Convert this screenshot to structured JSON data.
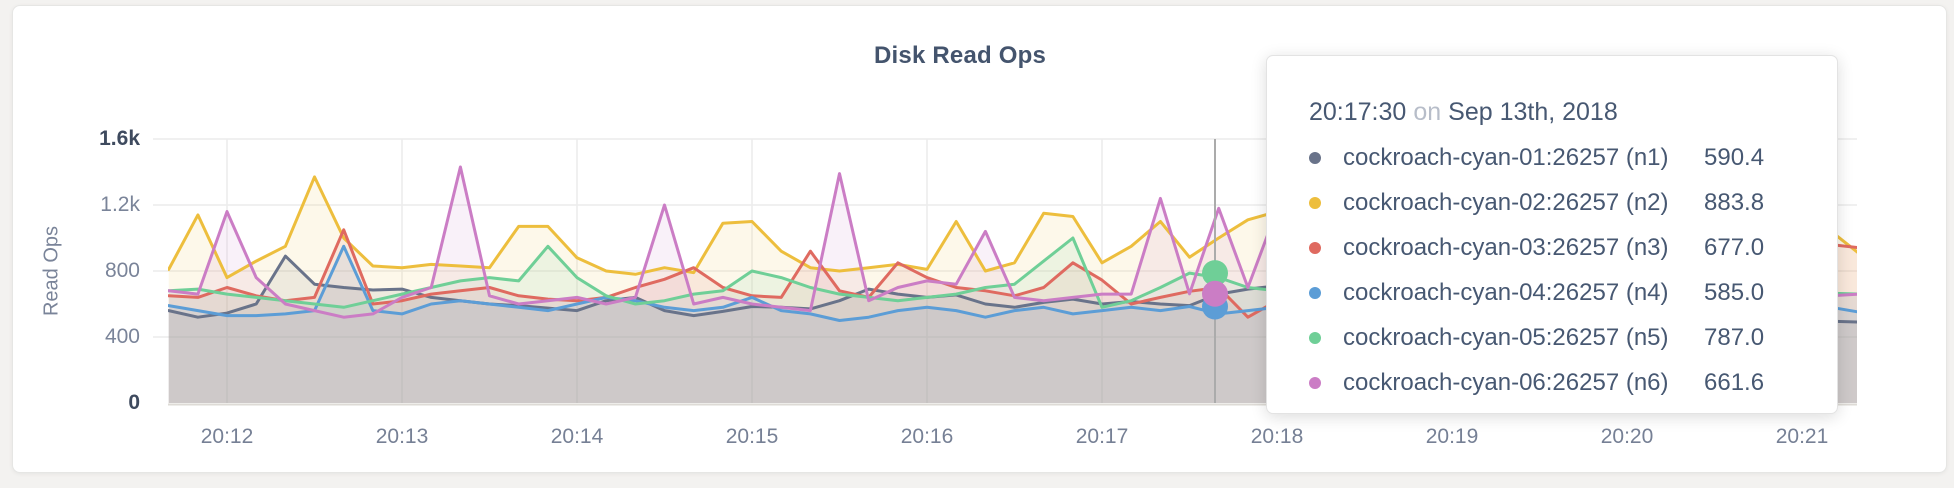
{
  "window": {
    "background": "#f3f2f0",
    "card_background": "#ffffff"
  },
  "chart": {
    "title": "Disk Read Ops",
    "y_axis_label": "Read Ops",
    "y_ticks": [
      {
        "value": 0,
        "label": "0",
        "bold": true
      },
      {
        "value": 400,
        "label": "400",
        "bold": false
      },
      {
        "value": 800,
        "label": "800",
        "bold": false
      },
      {
        "value": 1200,
        "label": "1.2k",
        "bold": false
      },
      {
        "value": 1600,
        "label": "1.6k",
        "bold": true
      }
    ],
    "x_ticks": [
      "20:12",
      "20:13",
      "20:14",
      "20:15",
      "20:16",
      "20:17",
      "20:18",
      "20:19",
      "20:20",
      "20:21"
    ],
    "grid_color": "#ececec",
    "baseline_color": "#dedbd6",
    "guideline_color": "#ababab"
  },
  "tooltip": {
    "time": "20:17:30",
    "conjunction": "on",
    "date": "Sep 13th, 2018",
    "rows": [
      {
        "label": "cockroach-cyan-01:26257 (n1)",
        "value": "590.4",
        "color": "#69738a"
      },
      {
        "label": "cockroach-cyan-02:26257 (n2)",
        "value": "883.8",
        "color": "#edbe3d"
      },
      {
        "label": "cockroach-cyan-03:26257 (n3)",
        "value": "677.0",
        "color": "#df6a60"
      },
      {
        "label": "cockroach-cyan-04:26257 (n4)",
        "value": "585.0",
        "color": "#5c9dd6"
      },
      {
        "label": "cockroach-cyan-05:26257 (n5)",
        "value": "787.0",
        "color": "#6fcf97"
      },
      {
        "label": "cockroach-cyan-06:26257 (n6)",
        "value": "661.6",
        "color": "#cb7dc5"
      }
    ]
  },
  "chart_data": {
    "type": "line",
    "title": "Disk Read Ops",
    "ylabel": "Read Ops",
    "ylim": [
      0,
      1600
    ],
    "ytick_values": [
      0,
      400,
      800,
      1200,
      1600
    ],
    "x_start_time": "20:11:40",
    "x_interval_seconds": 10,
    "x_tick_labels": [
      "20:12",
      "20:13",
      "20:14",
      "20:15",
      "20:16",
      "20:17",
      "20:18",
      "20:19",
      "20:20",
      "20:21"
    ],
    "hover_index": 35,
    "hover_time": "20:17:30",
    "hover_date": "Sep 13th, 2018",
    "hover_dot_series": [
      3,
      4,
      5
    ],
    "legend_position": "tooltip-only",
    "grid": true,
    "series": [
      {
        "name": "cockroach-cyan-01:26257 (n1)",
        "color": "#69738a",
        "values": [
          560,
          520,
          545,
          600,
          890,
          720,
          700,
          685,
          690,
          640,
          620,
          600,
          590,
          575,
          560,
          620,
          640,
          560,
          530,
          555,
          585,
          580,
          570,
          620,
          690,
          660,
          640,
          655,
          600,
          580,
          610,
          630,
          600,
          615,
          600,
          590.4,
          660,
          690,
          710,
          650,
          600,
          580,
          560,
          590,
          620,
          600,
          580,
          560,
          590,
          610,
          580,
          560,
          540,
          520,
          510,
          505,
          500,
          495,
          490
        ]
      },
      {
        "name": "cockroach-cyan-02:26257 (n2)",
        "color": "#edbe3d",
        "values": [
          810,
          1140,
          760,
          860,
          950,
          1370,
          1000,
          830,
          820,
          840,
          830,
          820,
          1070,
          1070,
          880,
          800,
          780,
          820,
          790,
          1090,
          1100,
          920,
          820,
          800,
          820,
          840,
          810,
          1100,
          800,
          850,
          1150,
          1130,
          850,
          950,
          1100,
          883.8,
          1000,
          1110,
          1160,
          880,
          800,
          850,
          900,
          820,
          780,
          880,
          950,
          850,
          800,
          900,
          1000,
          870,
          820,
          880,
          920,
          980,
          1100,
          1040,
          900
        ]
      },
      {
        "name": "cockroach-cyan-03:26257 (n3)",
        "color": "#df6a60",
        "values": [
          650,
          640,
          700,
          650,
          620,
          640,
          1050,
          600,
          620,
          660,
          680,
          700,
          650,
          630,
          620,
          640,
          700,
          750,
          820,
          700,
          650,
          640,
          920,
          680,
          640,
          850,
          760,
          700,
          680,
          650,
          700,
          850,
          745,
          600,
          640,
          677.0,
          700,
          520,
          620,
          680,
          700,
          650,
          620,
          640,
          700,
          680,
          640,
          620,
          660,
          700,
          650,
          630,
          600,
          620,
          640,
          700,
          850,
          960,
          940
        ]
      },
      {
        "name": "cockroach-cyan-04:26257 (n4)",
        "color": "#5c9dd6",
        "values": [
          590,
          560,
          530,
          530,
          540,
          560,
          950,
          560,
          540,
          600,
          620,
          600,
          580,
          560,
          600,
          640,
          620,
          580,
          560,
          580,
          640,
          560,
          540,
          500,
          520,
          560,
          580,
          560,
          520,
          560,
          580,
          540,
          560,
          580,
          560,
          585.0,
          540,
          560,
          580,
          560,
          540,
          560,
          580,
          560,
          540,
          560,
          580,
          560,
          540,
          560,
          580,
          560,
          540,
          560,
          600,
          1000,
          700,
          580,
          550
        ]
      },
      {
        "name": "cockroach-cyan-05:26257 (n5)",
        "color": "#6fcf97",
        "values": [
          680,
          690,
          660,
          640,
          620,
          600,
          580,
          620,
          660,
          700,
          740,
          760,
          740,
          950,
          760,
          650,
          600,
          620,
          660,
          680,
          800,
          760,
          700,
          660,
          640,
          620,
          640,
          660,
          700,
          720,
          860,
          1000,
          580,
          620,
          700,
          787.0,
          760,
          700,
          680,
          660,
          640,
          660,
          680,
          700,
          680,
          660,
          640,
          660,
          680,
          700,
          680,
          660,
          640,
          660,
          680,
          660,
          670,
          665,
          660
        ]
      },
      {
        "name": "cockroach-cyan-06:26257 (n6)",
        "color": "#cb7dc5",
        "values": [
          680,
          660,
          1160,
          760,
          600,
          560,
          520,
          540,
          640,
          700,
          1430,
          650,
          600,
          620,
          640,
          600,
          640,
          1200,
          600,
          640,
          600,
          580,
          560,
          1390,
          620,
          700,
          740,
          720,
          1040,
          640,
          620,
          640,
          660,
          660,
          1240,
          661.6,
          1180,
          700,
          1170,
          680,
          640,
          660,
          680,
          640,
          660,
          680,
          640,
          660,
          680,
          640,
          660,
          680,
          640,
          660,
          640,
          620,
          640,
          650,
          660
        ]
      }
    ]
  }
}
